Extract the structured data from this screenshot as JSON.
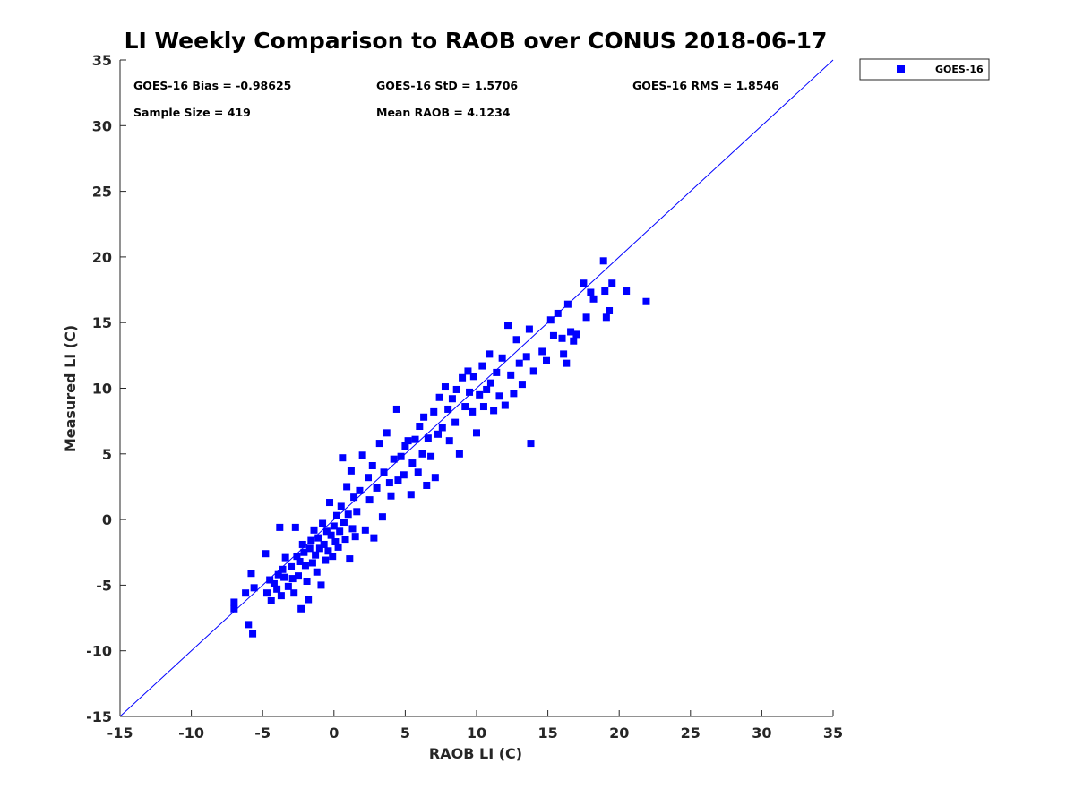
{
  "chart_data": {
    "type": "scatter",
    "title": "LI Weekly Comparison to RAOB over CONUS 2018-06-17",
    "xlabel": "RAOB LI (C)",
    "ylabel": "Measured LI (C)",
    "xlim": [
      -15,
      35
    ],
    "ylim": [
      -15,
      35
    ],
    "xticks": [
      "-15",
      "-10",
      "-5",
      "0",
      "5",
      "10",
      "15",
      "20",
      "25",
      "30",
      "35"
    ],
    "yticks": [
      "-15",
      "-10",
      "-5",
      "0",
      "5",
      "10",
      "15",
      "20",
      "25",
      "30",
      "35"
    ],
    "grid": false,
    "legend_position": "outside-top-right",
    "reference_line": {
      "name": "1:1",
      "from": [
        -15,
        -15
      ],
      "to": [
        35,
        35
      ],
      "color": "#0000ff"
    },
    "annotations": {
      "bias": "GOES-16 Bias = -0.98625",
      "std": "GOES-16 StD = 1.5706",
      "rms": "GOES-16 RMS = 1.8546",
      "sample_size": "Sample Size = 419",
      "mean_raob": "Mean RAOB = 4.1234"
    },
    "series": [
      {
        "name": "GOES-16",
        "color": "#0000ff",
        "marker": "square",
        "points": [
          [
            -7,
            -6.3
          ],
          [
            -7,
            -6.8
          ],
          [
            -6.2,
            -5.6
          ],
          [
            -6,
            -8
          ],
          [
            -5.7,
            -8.7
          ],
          [
            -5.8,
            -4.1
          ],
          [
            -5.6,
            -5.2
          ],
          [
            -4.8,
            -2.6
          ],
          [
            -4.7,
            -5.6
          ],
          [
            -4.5,
            -4.6
          ],
          [
            -4.4,
            -6.2
          ],
          [
            -4.2,
            -4.9
          ],
          [
            -4,
            -5.3
          ],
          [
            -3.9,
            -4.2
          ],
          [
            -3.8,
            -0.6
          ],
          [
            -3.7,
            -5.8
          ],
          [
            -3.6,
            -3.8
          ],
          [
            -3.5,
            -4.4
          ],
          [
            -3.4,
            -2.9
          ],
          [
            -3.2,
            -5.1
          ],
          [
            -3,
            -3.6
          ],
          [
            -2.9,
            -4.5
          ],
          [
            -2.8,
            -5.6
          ],
          [
            -2.7,
            -0.6
          ],
          [
            -2.6,
            -2.8
          ],
          [
            -2.5,
            -4.3
          ],
          [
            -2.4,
            -3.2
          ],
          [
            -2.3,
            -6.8
          ],
          [
            -2.2,
            -1.9
          ],
          [
            -2.1,
            -2.5
          ],
          [
            -2,
            -3.5
          ],
          [
            -1.9,
            -4.7
          ],
          [
            -1.8,
            -6.1
          ],
          [
            -1.7,
            -2.2
          ],
          [
            -1.6,
            -1.6
          ],
          [
            -1.5,
            -3.3
          ],
          [
            -1.4,
            -0.8
          ],
          [
            -1.3,
            -2.7
          ],
          [
            -1.2,
            -4.0
          ],
          [
            -1.1,
            -1.4
          ],
          [
            -1.0,
            -2.2
          ],
          [
            -0.9,
            -5.0
          ],
          [
            -0.8,
            -0.3
          ],
          [
            -0.7,
            -1.9
          ],
          [
            -0.6,
            -3.1
          ],
          [
            -0.5,
            -0.9
          ],
          [
            -0.4,
            -2.4
          ],
          [
            -0.3,
            1.3
          ],
          [
            -0.2,
            -1.2
          ],
          [
            -0.1,
            -2.8
          ],
          [
            0,
            -0.5
          ],
          [
            0.1,
            -1.7
          ],
          [
            0.2,
            0.3
          ],
          [
            0.3,
            -2.1
          ],
          [
            0.4,
            -0.9
          ],
          [
            0.5,
            1.0
          ],
          [
            0.6,
            4.7
          ],
          [
            0.7,
            -0.2
          ],
          [
            0.8,
            -1.5
          ],
          [
            0.9,
            2.5
          ],
          [
            1.0,
            0.4
          ],
          [
            1.1,
            -3.0
          ],
          [
            1.2,
            3.7
          ],
          [
            1.3,
            -0.7
          ],
          [
            1.4,
            1.7
          ],
          [
            1.5,
            -1.3
          ],
          [
            1.6,
            0.6
          ],
          [
            1.8,
            2.2
          ],
          [
            2.0,
            4.9
          ],
          [
            2.2,
            -0.8
          ],
          [
            2.4,
            3.2
          ],
          [
            2.5,
            1.5
          ],
          [
            2.7,
            4.1
          ],
          [
            2.8,
            -1.4
          ],
          [
            3.0,
            2.4
          ],
          [
            3.2,
            5.8
          ],
          [
            3.4,
            0.2
          ],
          [
            3.5,
            3.6
          ],
          [
            3.7,
            6.6
          ],
          [
            3.9,
            2.8
          ],
          [
            4.0,
            1.8
          ],
          [
            4.2,
            4.6
          ],
          [
            4.4,
            8.4
          ],
          [
            4.5,
            3.0
          ],
          [
            4.7,
            4.8
          ],
          [
            4.9,
            3.4
          ],
          [
            5.0,
            5.6
          ],
          [
            5.2,
            6.0
          ],
          [
            5.4,
            1.9
          ],
          [
            5.5,
            4.3
          ],
          [
            5.7,
            6.1
          ],
          [
            5.9,
            3.6
          ],
          [
            6.0,
            7.1
          ],
          [
            6.2,
            5.0
          ],
          [
            6.3,
            7.8
          ],
          [
            6.5,
            2.6
          ],
          [
            6.6,
            6.2
          ],
          [
            6.8,
            4.8
          ],
          [
            7.0,
            8.2
          ],
          [
            7.1,
            3.2
          ],
          [
            7.3,
            6.5
          ],
          [
            7.4,
            9.3
          ],
          [
            7.6,
            7.0
          ],
          [
            7.8,
            10.1
          ],
          [
            8.0,
            8.4
          ],
          [
            8.1,
            6.0
          ],
          [
            8.3,
            9.2
          ],
          [
            8.5,
            7.4
          ],
          [
            8.6,
            9.9
          ],
          [
            8.8,
            5.0
          ],
          [
            9.0,
            10.8
          ],
          [
            9.2,
            8.6
          ],
          [
            9.4,
            11.3
          ],
          [
            9.5,
            9.7
          ],
          [
            9.7,
            8.2
          ],
          [
            9.8,
            10.9
          ],
          [
            10.0,
            6.6
          ],
          [
            10.2,
            9.5
          ],
          [
            10.4,
            11.7
          ],
          [
            10.5,
            8.6
          ],
          [
            10.7,
            9.9
          ],
          [
            10.9,
            12.6
          ],
          [
            11.0,
            10.4
          ],
          [
            11.2,
            8.3
          ],
          [
            11.4,
            11.2
          ],
          [
            11.6,
            9.4
          ],
          [
            11.8,
            12.3
          ],
          [
            12.0,
            8.7
          ],
          [
            12.2,
            14.8
          ],
          [
            12.4,
            11.0
          ],
          [
            12.6,
            9.6
          ],
          [
            12.8,
            13.7
          ],
          [
            13.0,
            11.9
          ],
          [
            13.2,
            10.3
          ],
          [
            13.5,
            12.4
          ],
          [
            13.7,
            14.5
          ],
          [
            13.8,
            5.8
          ],
          [
            14.0,
            11.3
          ],
          [
            14.6,
            12.8
          ],
          [
            14.9,
            12.1
          ],
          [
            15.2,
            15.2
          ],
          [
            15.4,
            14.0
          ],
          [
            15.7,
            15.7
          ],
          [
            16.0,
            13.8
          ],
          [
            16.1,
            12.6
          ],
          [
            16.3,
            11.9
          ],
          [
            16.4,
            16.4
          ],
          [
            16.6,
            14.3
          ],
          [
            16.8,
            13.6
          ],
          [
            17.0,
            14.1
          ],
          [
            17.5,
            18.0
          ],
          [
            17.7,
            15.4
          ],
          [
            18.0,
            17.3
          ],
          [
            18.2,
            16.8
          ],
          [
            18.9,
            19.7
          ],
          [
            19.0,
            17.4
          ],
          [
            19.1,
            15.4
          ],
          [
            19.3,
            15.9
          ],
          [
            19.5,
            18.0
          ],
          [
            20.5,
            17.4
          ],
          [
            21.9,
            16.6
          ]
        ]
      }
    ]
  }
}
